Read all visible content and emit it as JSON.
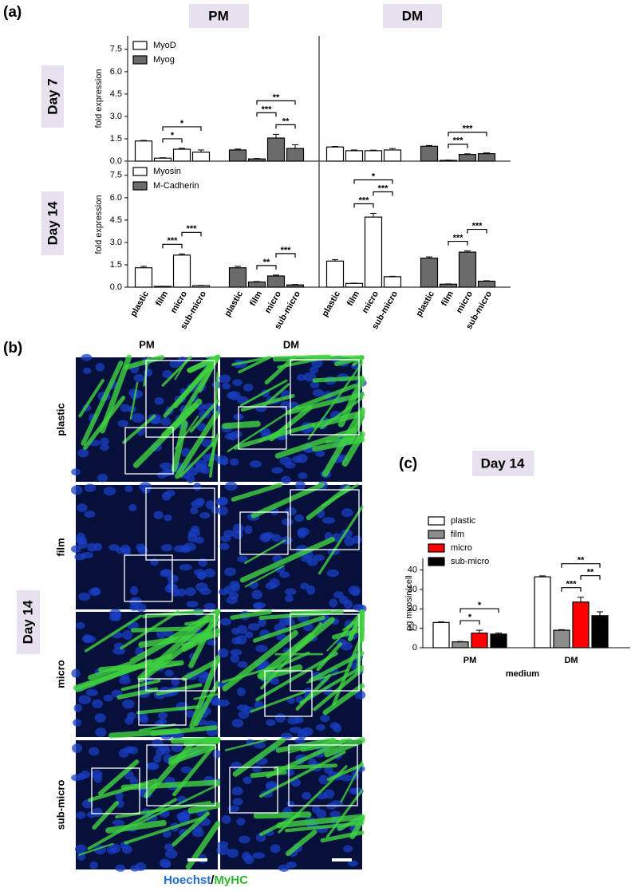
{
  "panel_a": {
    "label": "(a)",
    "columns": [
      "PM",
      "DM"
    ],
    "rows": [
      "Day 7",
      "Day 14"
    ]
  },
  "panel_b": {
    "label": "(b)",
    "columns": [
      "PM",
      "DM"
    ],
    "rows": [
      "plastic",
      "film",
      "micro",
      "sub-micro"
    ],
    "day": "Day 14",
    "stain_1": "Hoechst",
    "separator": "/",
    "stain_2": "MyHC"
  },
  "panel_c": {
    "label": "(c)"
  },
  "chart_data": [
    {
      "type": "bar",
      "ylabel": "fold expression",
      "ylim": [
        0,
        8.4
      ],
      "yticks": [
        {
          "value": 0,
          "label": "0.0"
        },
        1.5,
        {
          "value": 3,
          "label": "3.0"
        },
        4.5,
        {
          "value": 6,
          "label": "6.0"
        },
        7.5
      ],
      "series": [
        {
          "name": "MyoD",
          "color": "#ffffff",
          "values": [
            1.35,
            0.2,
            0.8,
            0.6
          ],
          "errors": [
            0.04,
            0.03,
            0.06,
            0.15
          ]
        },
        {
          "name": "Myog",
          "color": "#6b6b6b",
          "values": [
            0.75,
            0.15,
            1.55,
            0.85
          ],
          "errors": [
            0.06,
            0.03,
            0.25,
            0.25
          ]
        }
      ],
      "annotations": [
        {
          "text": "*",
          "series": 0,
          "from": 1,
          "to": 2
        },
        {
          "text": "*",
          "series": 0,
          "from": 1,
          "to": 3
        },
        {
          "text": "**",
          "series": 1,
          "from": 2,
          "to": 3
        },
        {
          "text": "***",
          "series": 1,
          "from": 1,
          "to": 2
        },
        {
          "text": "**",
          "series": 1,
          "from": 1,
          "to": 3
        }
      ]
    },
    {
      "type": "bar",
      "ylim": [
        0,
        8.4
      ],
      "series": [
        {
          "color": "#ffffff",
          "values": [
            0.95,
            0.7,
            0.7,
            0.75
          ],
          "errors": [
            0.04,
            0.05,
            0.04,
            0.1
          ]
        },
        {
          "color": "#6b6b6b",
          "values": [
            1.0,
            0.05,
            0.45,
            0.5
          ],
          "errors": [
            0.05,
            0.02,
            0.04,
            0.05
          ]
        }
      ],
      "annotations": [
        {
          "text": "***",
          "series": 1,
          "from": 1,
          "to": 2
        },
        {
          "text": "***",
          "series": 1,
          "from": 1,
          "to": 3
        }
      ]
    },
    {
      "type": "bar",
      "ylabel": "fold expression",
      "ylim": [
        0,
        8.4
      ],
      "yticks": [
        {
          "value": 0,
          "label": "0.0"
        },
        1.5,
        {
          "value": 3,
          "label": "3.0"
        },
        4.5,
        {
          "value": 6,
          "label": "6.0"
        },
        7.5
      ],
      "categories": [
        "plastic",
        "film",
        "micro",
        "sub-micro"
      ],
      "series": [
        {
          "name": "Myosin",
          "color": "#ffffff",
          "values": [
            1.3,
            0.05,
            2.15,
            0.1
          ],
          "errors": [
            0.1,
            0.01,
            0.08,
            0.02
          ]
        },
        {
          "name": "M-Cadherin",
          "color": "#6b6b6b",
          "values": [
            1.3,
            0.35,
            0.75,
            0.15
          ],
          "errors": [
            0.1,
            0.03,
            0.06,
            0.03
          ]
        }
      ],
      "annotations": [
        {
          "text": "***",
          "series": 0,
          "from": 1,
          "to": 2
        },
        {
          "text": "***",
          "series": 0,
          "from": 2,
          "to": 3
        },
        {
          "text": "**",
          "series": 1,
          "from": 1,
          "to": 2
        },
        {
          "text": "***",
          "series": 1,
          "from": 2,
          "to": 3
        }
      ]
    },
    {
      "type": "bar",
      "ylim": [
        0,
        8.4
      ],
      "categories": [
        "plastic",
        "film",
        "micro",
        "sub-micro"
      ],
      "series": [
        {
          "color": "#ffffff",
          "values": [
            1.75,
            0.25,
            4.7,
            0.7
          ],
          "errors": [
            0.1,
            0.02,
            0.25,
            0.03
          ]
        },
        {
          "color": "#6b6b6b",
          "values": [
            1.95,
            0.2,
            2.35,
            0.4
          ],
          "errors": [
            0.08,
            0.02,
            0.08,
            0.03
          ]
        }
      ],
      "annotations": [
        {
          "text": "***",
          "series": 0,
          "from": 1,
          "to": 2
        },
        {
          "text": "***",
          "series": 0,
          "from": 2,
          "to": 3
        },
        {
          "text": "*",
          "series": 0,
          "from": 1,
          "to": 3
        },
        {
          "text": "***",
          "series": 1,
          "from": 1,
          "to": 2
        },
        {
          "text": "***",
          "series": 1,
          "from": 2,
          "to": 3
        }
      ]
    },
    {
      "type": "bar",
      "title": "Day 14",
      "ylabel": "pg myosin/cell",
      "xlabel": "medium",
      "ylim": [
        0,
        46
      ],
      "yticks": [
        0,
        10,
        20,
        30,
        40
      ],
      "categories": [
        "PM",
        "DM"
      ],
      "series": [
        {
          "name": "plastic",
          "color": "#ffffff",
          "values": [
            13,
            36.5
          ],
          "errors": [
            0.3,
            0.5
          ]
        },
        {
          "name": "film",
          "color": "#8c8c8c",
          "values": [
            3,
            9
          ],
          "errors": [
            0.2,
            0.3
          ]
        },
        {
          "name": "micro",
          "color": "#ff0000",
          "values": [
            7.5,
            23.5
          ],
          "errors": [
            1.5,
            2.5
          ]
        },
        {
          "name": "sub-micro",
          "color": "#000000",
          "values": [
            7,
            16.5
          ],
          "errors": [
            0.5,
            2
          ]
        }
      ],
      "annotations": [
        {
          "text": "*",
          "category": 0,
          "from": 1,
          "to": 2
        },
        {
          "text": "*",
          "category": 0,
          "from": 1,
          "to": 3
        },
        {
          "text": "***",
          "category": 1,
          "from": 1,
          "to": 2
        },
        {
          "text": "**",
          "category": 1,
          "from": 2,
          "to": 3
        },
        {
          "text": "**",
          "category": 1,
          "from": 1,
          "to": 3
        }
      ]
    }
  ]
}
